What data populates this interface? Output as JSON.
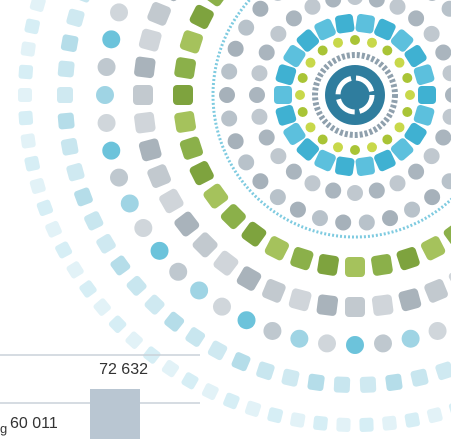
{
  "labels": {
    "upper": "72 632",
    "fragment": "g",
    "lower": "60 011"
  }
}
